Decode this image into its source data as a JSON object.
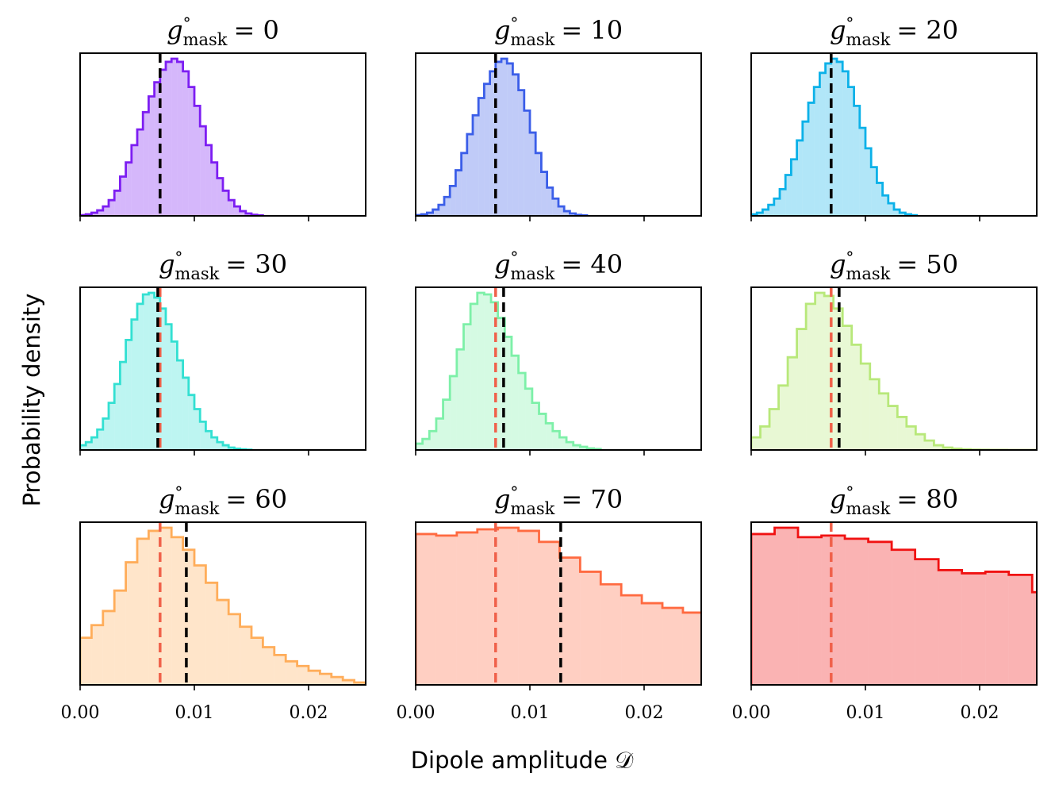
{
  "figure": {
    "xlabel": "Dipole amplitude 𝒟",
    "ylabel": "Probability density"
  },
  "chart_data": [
    {
      "type": "histogram",
      "title": "g°mask = 0",
      "title_var": "g",
      "title_sup": "°",
      "title_sub": "mask",
      "title_value": "= 0",
      "color": "#7d1ef2",
      "xlim": [
        0,
        0.025
      ],
      "x_ticks": [
        "0.00",
        "0.01",
        "0.02"
      ],
      "show_x_ticks": false,
      "bin_start": 0.0,
      "bin_width": 0.0005,
      "values": [
        0.005,
        0.01,
        0.02,
        0.035,
        0.06,
        0.1,
        0.16,
        0.25,
        0.34,
        0.45,
        0.55,
        0.66,
        0.76,
        0.85,
        0.93,
        0.98,
        1.0,
        0.98,
        0.92,
        0.82,
        0.7,
        0.57,
        0.45,
        0.34,
        0.24,
        0.16,
        0.1,
        0.06,
        0.03,
        0.015,
        0.007,
        0.003
      ],
      "true_value": 0.007,
      "mean_value": 0.007
    },
    {
      "type": "histogram",
      "title": "g°mask = 10",
      "title_var": "g",
      "title_sup": "°",
      "title_sub": "mask",
      "title_value": "= 10",
      "color": "#3b5ee8",
      "xlim": [
        0,
        0.025
      ],
      "x_ticks": [
        "0.00",
        "0.01",
        "0.02"
      ],
      "show_x_ticks": false,
      "bin_start": 0.0,
      "bin_width": 0.0005,
      "values": [
        0.005,
        0.01,
        0.02,
        0.04,
        0.07,
        0.12,
        0.19,
        0.29,
        0.4,
        0.52,
        0.64,
        0.75,
        0.84,
        0.92,
        0.98,
        1.0,
        0.97,
        0.9,
        0.8,
        0.67,
        0.53,
        0.4,
        0.28,
        0.18,
        0.11,
        0.06,
        0.03,
        0.015,
        0.006,
        0.003
      ],
      "true_value": 0.007,
      "mean_value": 0.007
    },
    {
      "type": "histogram",
      "title": "g°mask = 20",
      "title_var": "g",
      "title_sup": "°",
      "title_sub": "mask",
      "title_value": "= 20",
      "color": "#0cb1e8",
      "xlim": [
        0,
        0.025
      ],
      "x_ticks": [
        "0.00",
        "0.01",
        "0.02"
      ],
      "show_x_ticks": false,
      "bin_start": 0.0,
      "bin_width": 0.0005,
      "values": [
        0.01,
        0.02,
        0.04,
        0.07,
        0.11,
        0.17,
        0.26,
        0.36,
        0.48,
        0.6,
        0.72,
        0.82,
        0.91,
        0.97,
        1.0,
        0.98,
        0.92,
        0.82,
        0.7,
        0.56,
        0.43,
        0.31,
        0.21,
        0.13,
        0.08,
        0.04,
        0.02,
        0.01,
        0.004
      ],
      "true_value": 0.007,
      "mean_value": 0.007
    },
    {
      "type": "histogram",
      "title": "g°mask = 30",
      "title_var": "g",
      "title_sup": "°",
      "title_sub": "mask",
      "title_value": "= 30",
      "color": "#33e0d2",
      "xlim": [
        0,
        0.025
      ],
      "x_ticks": [
        "0.00",
        "0.01",
        "0.02"
      ],
      "show_x_ticks": false,
      "bin_start": 0.0,
      "bin_width": 0.0005,
      "values": [
        0.03,
        0.05,
        0.08,
        0.13,
        0.2,
        0.3,
        0.42,
        0.56,
        0.7,
        0.83,
        0.93,
        0.99,
        1.0,
        0.97,
        0.9,
        0.8,
        0.69,
        0.57,
        0.46,
        0.35,
        0.26,
        0.18,
        0.12,
        0.08,
        0.05,
        0.03,
        0.015,
        0.008,
        0.004,
        0.002
      ],
      "true_value": 0.007,
      "mean_value": 0.0068
    },
    {
      "type": "histogram",
      "title": "g°mask = 40",
      "title_var": "g",
      "title_sup": "°",
      "title_sub": "mask",
      "title_value": "= 40",
      "color": "#7df0a8",
      "xlim": [
        0,
        0.025
      ],
      "x_ticks": [
        "0.00",
        "0.01",
        "0.02"
      ],
      "show_x_ticks": false,
      "bin_start": 0.0,
      "bin_width": 0.0006,
      "values": [
        0.04,
        0.07,
        0.12,
        0.2,
        0.32,
        0.47,
        0.64,
        0.8,
        0.93,
        1.0,
        0.99,
        0.94,
        0.84,
        0.72,
        0.6,
        0.49,
        0.39,
        0.3,
        0.23,
        0.17,
        0.12,
        0.08,
        0.05,
        0.03,
        0.02,
        0.01,
        0.006
      ],
      "true_value": 0.007,
      "mean_value": 0.0077
    },
    {
      "type": "histogram",
      "title": "g°mask = 50",
      "title_var": "g",
      "title_sup": "°",
      "title_sub": "mask",
      "title_value": "= 50",
      "color": "#b8e87a",
      "xlim": [
        0,
        0.025
      ],
      "x_ticks": [
        "0.00",
        "0.01",
        "0.02"
      ],
      "show_x_ticks": false,
      "bin_start": 0.0,
      "bin_width": 0.0008,
      "values": [
        0.08,
        0.15,
        0.26,
        0.41,
        0.59,
        0.77,
        0.93,
        1.0,
        0.98,
        0.9,
        0.79,
        0.67,
        0.55,
        0.45,
        0.36,
        0.28,
        0.21,
        0.15,
        0.1,
        0.06,
        0.03,
        0.015,
        0.008,
        0.004,
        0.002,
        0.001,
        0.0005,
        0.0002,
        0.0001,
        5e-05,
        2e-05,
        1e-05
      ],
      "true_value": 0.007,
      "mean_value": 0.0077
    },
    {
      "type": "histogram",
      "title": "g°mask = 60",
      "title_var": "g",
      "title_sup": "°",
      "title_sub": "mask",
      "title_value": "= 60",
      "color": "#ffad5a",
      "xlim": [
        0,
        0.025
      ],
      "x_ticks": [
        "0.00",
        "0.01",
        "0.02"
      ],
      "show_x_ticks": true,
      "bin_start": 0.0,
      "bin_width": 0.001,
      "values": [
        0.3,
        0.38,
        0.47,
        0.6,
        0.78,
        0.93,
        0.98,
        1.0,
        0.94,
        0.86,
        0.76,
        0.65,
        0.54,
        0.45,
        0.37,
        0.3,
        0.24,
        0.19,
        0.15,
        0.12,
        0.09,
        0.07,
        0.05,
        0.03,
        0.015
      ],
      "true_value": 0.007,
      "mean_value": 0.0093
    },
    {
      "type": "histogram",
      "title": "g°mask = 70",
      "title_var": "g",
      "title_sup": "°",
      "title_sub": "mask",
      "title_value": "= 70",
      "color": "#ff6a40",
      "xlim": [
        0,
        0.025
      ],
      "x_ticks": [
        "0.00",
        "0.01",
        "0.02"
      ],
      "show_x_ticks": true,
      "bin_start": 0.0,
      "bin_width": 0.0018,
      "values": [
        0.96,
        0.95,
        0.97,
        0.99,
        1.0,
        0.98,
        0.91,
        0.81,
        0.72,
        0.64,
        0.57,
        0.52,
        0.49,
        0.46
      ],
      "true_value": 0.007,
      "mean_value": 0.0127
    },
    {
      "type": "histogram",
      "title": "g°mask = 80",
      "title_var": "g",
      "title_sup": "°",
      "title_sub": "mask",
      "title_value": "= 80",
      "color": "#f01212",
      "xlim": [
        0,
        0.025
      ],
      "x_ticks": [
        "0.00",
        "0.01",
        "0.02"
      ],
      "show_x_ticks": true,
      "bin_start": 0.0,
      "bin_width": 0.00205,
      "values": [
        0.96,
        1.0,
        0.94,
        0.95,
        0.93,
        0.91,
        0.86,
        0.8,
        0.73,
        0.71,
        0.72,
        0.7,
        0.59
      ],
      "true_value": 0.007,
      "mean_value": null
    }
  ]
}
